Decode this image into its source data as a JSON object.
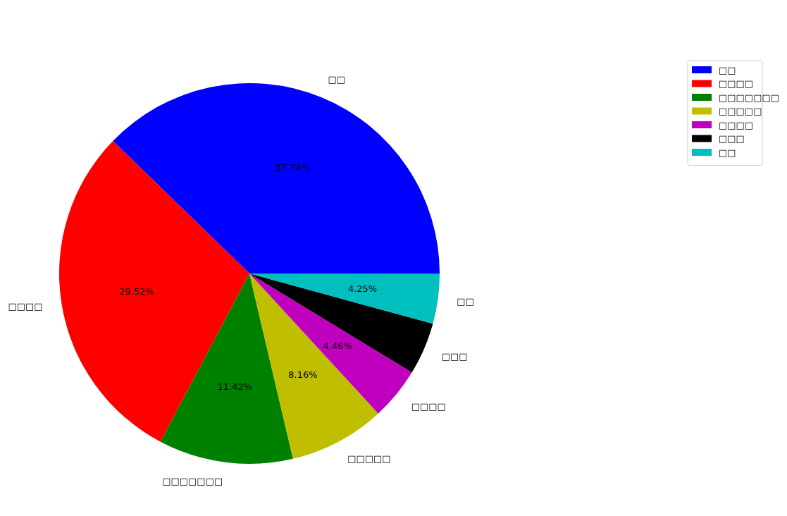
{
  "chart_data": {
    "type": "pie",
    "categories": [
      "□□",
      "□□□□",
      "□□□□□□□",
      "□□□□□",
      "□□□□",
      "□□□",
      "□□"
    ],
    "values": [
      37.74,
      29.52,
      11.42,
      8.16,
      4.46,
      4.45,
      4.25
    ],
    "colors": [
      "#0000ff",
      "#ff0000",
      "#008000",
      "#bfbf00",
      "#bf00bf",
      "#000000",
      "#00bfbf"
    ],
    "value_labels": [
      "37.74%",
      "29.52%",
      "11.42%",
      "8.16%",
      "4.46%",
      null,
      "4.25%"
    ],
    "legend": "top right"
  }
}
